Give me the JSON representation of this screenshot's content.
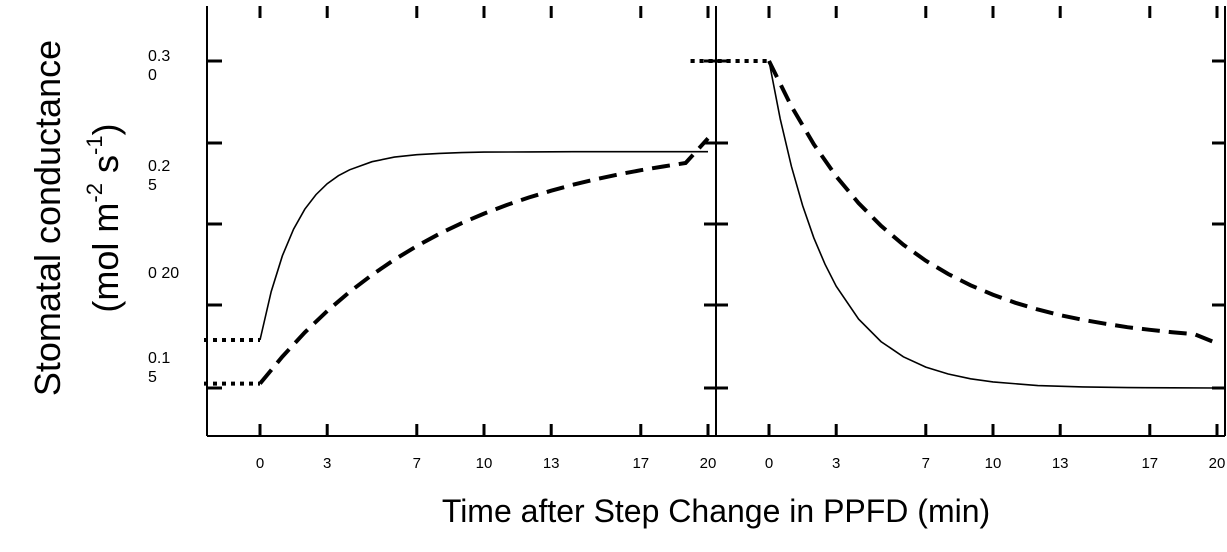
{
  "chart_data": {
    "type": "line",
    "ylabel": {
      "line1": "Stomatal conductance",
      "line2_prefix": "(mol m",
      "sup1": "-2",
      "middle": " s",
      "sup2": "-1",
      "suffix": ")"
    },
    "xlabel": "Time after Step Change in PPFD (min)",
    "ytick_labels": [
      [
        "0.3",
        "0"
      ],
      [
        "0.2",
        "5"
      ],
      [
        "0 20"
      ],
      [
        "0.1",
        "5"
      ]
    ],
    "ylim": [
      0.14,
      0.31
    ],
    "xlim": [
      -3.5,
      20.5
    ],
    "panels": [
      {
        "xticks": [
          "0",
          "3",
          "7",
          "10",
          "13",
          "17",
          "20"
        ],
        "xtick_values": [
          0,
          3,
          7,
          10,
          13,
          17,
          20
        ],
        "series": [
          {
            "style": "solid",
            "pre_step": {
              "x": [
                -2.5,
                0
              ],
              "y": [
                0.172,
                0.172
              ]
            },
            "x": [
              0,
              0.5,
              1,
              1.5,
              2,
              2.5,
              3,
              3.5,
              4,
              5,
              6,
              7,
              8,
              9,
              10,
              12,
              14,
              16,
              18,
              20
            ],
            "y": [
              0.172,
              0.1942,
              0.2107,
              0.2229,
              0.232,
              0.2387,
              0.2437,
              0.2474,
              0.2501,
              0.2538,
              0.2559,
              0.257,
              0.2576,
              0.258,
              0.2582,
              0.2583,
              0.2584,
              0.2584,
              0.2584,
              0.2584
            ]
          },
          {
            "style": "dashed",
            "pre_step": {
              "x": [
                -2.5,
                0
              ],
              "y": [
                0.152,
                0.152
              ]
            },
            "x": [
              0,
              1,
              2,
              3,
              4,
              5,
              6,
              7,
              8,
              9,
              10,
              11,
              12,
              13,
              14,
              15,
              16,
              17,
              18,
              19,
              20
            ],
            "y": [
              0.152,
              0.1644,
              0.1755,
              0.1853,
              0.1941,
              0.2019,
              0.2089,
              0.2151,
              0.2207,
              0.2256,
              0.23,
              0.2339,
              0.2374,
              0.2405,
              0.2433,
              0.2458,
              0.248,
              0.2499,
              0.2516,
              0.2532,
              0.2645
            ]
          }
        ]
      },
      {
        "xticks": [
          "0",
          "3",
          "7",
          "10",
          "13",
          "17",
          "20"
        ],
        "xtick_values": [
          0,
          3,
          7,
          10,
          13,
          17,
          20
        ],
        "series": [
          {
            "style": "solid",
            "pre_step": {
              "x": [
                -3.5,
                0
              ],
              "y": [
                0.3,
                0.3
              ]
            },
            "x": [
              0,
              0.5,
              1,
              1.5,
              2,
              2.5,
              3,
              4,
              5,
              6,
              7,
              8,
              9,
              10,
              12,
              14,
              16,
              18,
              20
            ],
            "y": [
              0.3,
              0.2735,
              0.2517,
              0.2337,
              0.2189,
              0.2068,
              0.1967,
              0.1816,
              0.1713,
              0.1643,
              0.1596,
              0.1564,
              0.1542,
              0.1528,
              0.1511,
              0.1505,
              0.1502,
              0.1501,
              0.15
            ]
          },
          {
            "style": "dashed",
            "pre_step": {
              "x": [
                -3.5,
                0
              ],
              "y": [
                0.3,
                0.3
              ]
            },
            "x": [
              0,
              1,
              2,
              3,
              4,
              5,
              6,
              7,
              8,
              9,
              10,
              11,
              12,
              13,
              14,
              15,
              16,
              17,
              18,
              19,
              20
            ],
            "y": [
              0.3,
              0.2792,
              0.2618,
              0.2471,
              0.2348,
              0.2244,
              0.2157,
              0.2084,
              0.2023,
              0.1971,
              0.1928,
              0.1891,
              0.186,
              0.1834,
              0.1813,
              0.1795,
              0.1779,
              0.1767,
              0.1756,
              0.1747,
              0.1705
            ]
          }
        ]
      }
    ]
  }
}
